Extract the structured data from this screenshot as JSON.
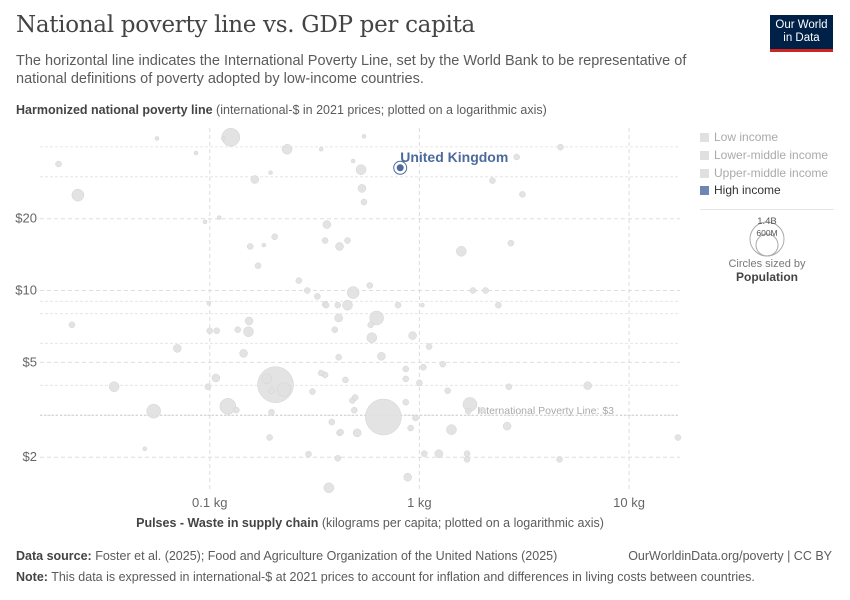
{
  "header": {
    "title": "National poverty line vs. GDP per capita",
    "subtitle": "The horizontal line indicates the International Poverty Line, set by the World Bank to be representative of national definitions of poverty adopted by low-income countries.",
    "logo_line1": "Our World",
    "logo_line2": "in Data"
  },
  "legend": {
    "items": [
      {
        "label": "Low income",
        "color": "#e0e0e0"
      },
      {
        "label": "Lower-middle income",
        "color": "#e0e0e0"
      },
      {
        "label": "Upper-middle income",
        "color": "#e0e0e0"
      },
      {
        "label": "High income",
        "color": "#6d86b5"
      }
    ],
    "size_large": "1.4B",
    "size_small": "600M",
    "size_note": "Circles sized by",
    "size_var": "Population"
  },
  "footer": {
    "source_label": "Data source:",
    "source": "Foster et al. (2025); Food and Agriculture Organization of the United Nations (2025)",
    "link": "OurWorldinData.org/poverty | CC BY",
    "note_label": "Note:",
    "note": "This data is expressed in international-$ at 2021 prices to account for inflation and differences in living costs between countries."
  },
  "chart_data": {
    "type": "scatter",
    "title": "National poverty line vs. GDP per capita",
    "ylabel_bold": "Harmonized national poverty line",
    "ylabel_rest": " (international-$ in 2021 prices; plotted on a logarithmic axis)",
    "xlabel_bold": "Pulses - Waste in supply chain",
    "xlabel_rest": " (kilograms per capita; plotted on a logarithmic axis)",
    "x_scale": "log",
    "y_scale": "log",
    "xlim": [
      0.0155,
      17.5
    ],
    "ylim": [
      1.43,
      48
    ],
    "x_ticks": [
      {
        "v": 0.1,
        "label": "0.1 kg"
      },
      {
        "v": 1,
        "label": "1 kg"
      },
      {
        "v": 10,
        "label": "10 kg"
      }
    ],
    "y_ticks": [
      {
        "v": 2,
        "label": "$2"
      },
      {
        "v": 5,
        "label": "$5"
      },
      {
        "v": 10,
        "label": "$10"
      },
      {
        "v": 20,
        "label": "$20"
      }
    ],
    "y_minor_grid": [
      3,
      4,
      6,
      8,
      9,
      30,
      40
    ],
    "grid": true,
    "legend_position": "right",
    "reference_line": {
      "y": 3,
      "label": "International Poverty Line: $3"
    },
    "highlight": {
      "label": "United Kingdom",
      "x": 0.81,
      "y": 32.7,
      "population_m": 69,
      "color": "#4c6a9c"
    },
    "point_color": "#e0e0e0",
    "point_fields": [
      "kg_per_capita",
      "poverty_line_usd",
      "population_millions"
    ],
    "points": [
      [
        0.019,
        33.9,
        39
      ],
      [
        0.0235,
        25.1,
        156
      ],
      [
        0.022,
        7.18,
        39
      ],
      [
        0.035,
        3.95,
        108
      ],
      [
        0.054,
        3.12,
        212
      ],
      [
        0.07,
        5.72,
        69
      ],
      [
        0.056,
        43.4,
        17
      ],
      [
        0.049,
        2.17,
        17
      ],
      [
        0.086,
        37.7,
        17
      ],
      [
        0.126,
        43.9,
        350
      ],
      [
        0.164,
        29.2,
        69
      ],
      [
        0.234,
        39.1,
        108
      ],
      [
        0.195,
        31.2,
        17
      ],
      [
        0.116,
        43.4,
        17
      ],
      [
        0.095,
        19.4,
        17
      ],
      [
        0.111,
        20.2,
        17
      ],
      [
        0.156,
        15.3,
        39
      ],
      [
        0.17,
        12.7,
        39
      ],
      [
        0.204,
        16.8,
        39
      ],
      [
        0.181,
        15.5,
        17
      ],
      [
        0.154,
        7.45,
        69
      ],
      [
        0.153,
        6.72,
        108
      ],
      [
        0.136,
        6.85,
        39
      ],
      [
        0.108,
        6.78,
        39
      ],
      [
        0.1,
        6.78,
        39
      ],
      [
        0.099,
        8.85,
        17
      ],
      [
        0.145,
        5.45,
        69
      ],
      [
        0.107,
        4.3,
        69
      ],
      [
        0.098,
        3.95,
        39
      ],
      [
        0.206,
        4.03,
        1400
      ],
      [
        0.226,
        3.84,
        212
      ],
      [
        0.187,
        4.26,
        108
      ],
      [
        0.122,
        3.27,
        277
      ],
      [
        0.134,
        3.15,
        39
      ],
      [
        0.197,
        3.8,
        39
      ],
      [
        0.197,
        3.09,
        39
      ],
      [
        0.193,
        2.42,
        39
      ],
      [
        0.296,
        2.06,
        39
      ],
      [
        0.37,
        1.49,
        108
      ],
      [
        0.408,
        1.98,
        39
      ],
      [
        0.362,
        18.9,
        69
      ],
      [
        0.416,
        15.3,
        69
      ],
      [
        0.454,
        16.2,
        39
      ],
      [
        0.355,
        16.2,
        39
      ],
      [
        0.266,
        11.0,
        39
      ],
      [
        0.292,
        10.0,
        39
      ],
      [
        0.326,
        9.45,
        39
      ],
      [
        0.355,
        8.76,
        39
      ],
      [
        0.359,
        8.68,
        39
      ],
      [
        0.408,
        8.68,
        39
      ],
      [
        0.483,
        9.8,
        156
      ],
      [
        0.454,
        8.68,
        108
      ],
      [
        0.412,
        7.67,
        69
      ],
      [
        0.395,
        6.85,
        39
      ],
      [
        0.586,
        7.18,
        39
      ],
      [
        0.625,
        7.67,
        212
      ],
      [
        0.593,
        6.34,
        108
      ],
      [
        0.659,
        5.3,
        69
      ],
      [
        0.412,
        5.25,
        39
      ],
      [
        0.355,
        4.43,
        39
      ],
      [
        0.34,
        4.51,
        39
      ],
      [
        0.309,
        3.77,
        39
      ],
      [
        0.444,
        4.22,
        39
      ],
      [
        0.382,
        2.81,
        39
      ],
      [
        0.479,
        3.46,
        39
      ],
      [
        0.494,
        3.56,
        39
      ],
      [
        0.489,
        3.15,
        39
      ],
      [
        0.673,
        2.95,
        1400
      ],
      [
        0.416,
        2.53,
        39
      ],
      [
        0.421,
        2.55,
        39
      ],
      [
        0.505,
        2.53,
        69
      ],
      [
        0.58,
        10.5,
        39
      ],
      [
        0.544,
        23.5,
        39
      ],
      [
        0.532,
        26.8,
        69
      ],
      [
        0.527,
        32.1,
        108
      ],
      [
        0.544,
        44.3,
        17
      ],
      [
        0.483,
        34.9,
        17
      ],
      [
        0.34,
        39.1,
        17
      ],
      [
        0.928,
        6.47,
        69
      ],
      [
        0.791,
        8.68,
        39
      ],
      [
        0.861,
        4.69,
        39
      ],
      [
        0.861,
        4.26,
        39
      ],
      [
        0.861,
        3.4,
        39
      ],
      [
        0.908,
        2.65,
        39
      ],
      [
        0.958,
        2.92,
        39
      ],
      [
        0.88,
        1.65,
        69
      ],
      [
        1.0,
        4.1,
        39
      ],
      [
        1.055,
        2.07,
        39
      ],
      [
        1.033,
        8.68,
        17
      ],
      [
        1.044,
        4.77,
        39
      ],
      [
        1.112,
        5.82,
        39
      ],
      [
        1.238,
        2.07,
        69
      ],
      [
        1.422,
        2.61,
        108
      ],
      [
        1.292,
        4.91,
        39
      ],
      [
        1.364,
        3.8,
        39
      ],
      [
        1.743,
        3.33,
        212
      ],
      [
        1.584,
        14.6,
        108
      ],
      [
        1.8,
        10.0,
        39
      ],
      [
        1.687,
        2.07,
        39
      ],
      [
        1.687,
        1.96,
        39
      ],
      [
        2.07,
        10.0,
        39
      ],
      [
        2.73,
        15.8,
        39
      ],
      [
        2.38,
        8.68,
        39
      ],
      [
        2.67,
        3.95,
        39
      ],
      [
        2.62,
        2.7,
        69
      ],
      [
        2.23,
        28.9,
        39
      ],
      [
        2.91,
        36.3,
        39
      ],
      [
        3.1,
        25.3,
        39
      ],
      [
        4.71,
        39.9,
        39
      ],
      [
        4.66,
        1.96,
        39
      ],
      [
        6.35,
        3.99,
        69
      ],
      [
        17.1,
        2.42,
        39
      ],
      [
        2.0,
        3.15,
        39
      ],
      [
        1.71,
        3.12,
        39
      ]
    ]
  }
}
